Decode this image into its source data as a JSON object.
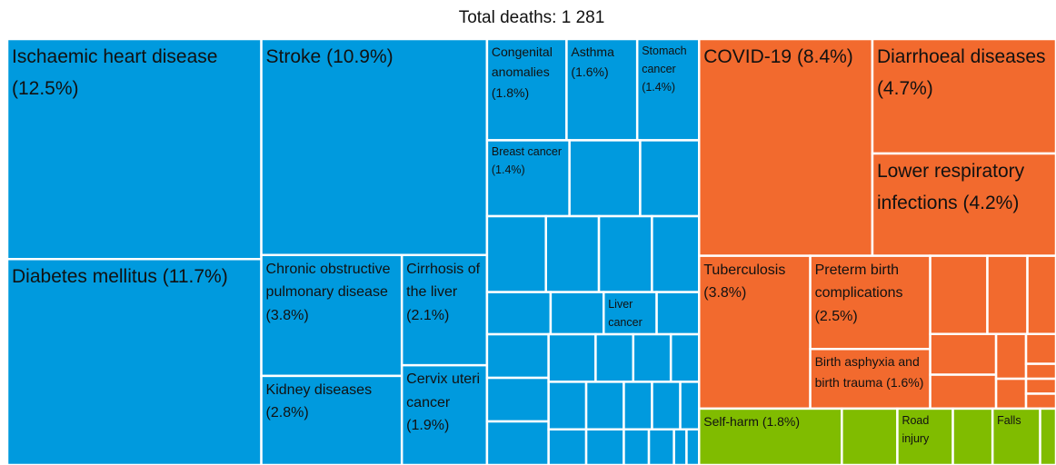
{
  "chart_data": {
    "type": "treemap",
    "title": "Total deaths: 1 281",
    "groups": [
      {
        "color": "#009ADE",
        "categories": [
          "Ischaemic heart disease",
          "Diabetes mellitus",
          "Stroke",
          "Chronic obstructive pulmonary disease",
          "Kidney diseases",
          "Cirrhosis of the liver",
          "Cervix uteri cancer",
          "Congenital anomalies",
          "Asthma",
          "Stomach cancer",
          "Breast cancer",
          "Liver cancer",
          null,
          null,
          null,
          null,
          null,
          null,
          null,
          null,
          null,
          null,
          null,
          null,
          null,
          null,
          null,
          null,
          null,
          null,
          null,
          null,
          null,
          null,
          null,
          null,
          null,
          null,
          null
        ],
        "values": [
          12.5,
          11.7,
          10.9,
          3.8,
          2.8,
          2.1,
          1.9,
          1.8,
          1.6,
          1.4,
          1.4,
          0.5,
          1.2,
          1.0,
          1.0,
          0.9,
          0.9,
          0.8,
          0.6,
          0.5,
          0.4,
          0.6,
          0.6,
          0.6,
          0.5,
          0.4,
          0.4,
          0.3,
          0.4,
          0.4,
          0.3,
          0.3,
          0.2,
          0.3,
          0.3,
          0.2,
          0.2,
          0.1,
          0.1
        ],
        "value_labels": [
          "(12.5%)",
          "(11.7%)",
          "(10.9%)",
          "(3.8%)",
          "(2.8%)",
          "(2.1%)",
          "(1.9%)",
          "(1.8%)",
          "(1.6%)",
          "(1.4%)",
          "(1.4%)",
          null,
          null,
          null,
          null,
          null,
          null,
          null,
          null,
          null,
          null,
          null,
          null,
          null,
          null,
          null,
          null,
          null,
          null,
          null,
          null,
          null,
          null,
          null,
          null,
          null,
          null,
          null,
          null
        ]
      },
      {
        "color": "#F26A2E",
        "categories": [
          "COVID-19",
          "Diarrhoeal diseases",
          "Lower respiratory infections",
          "Tuberculosis",
          "Preterm birth complications",
          "Birth asphyxia and birth trauma",
          null,
          null,
          null,
          null,
          null,
          null,
          null,
          null,
          null,
          null,
          null
        ],
        "values": [
          8.4,
          4.7,
          4.2,
          3.8,
          2.5,
          1.6,
          1.0,
          0.7,
          0.5,
          0.6,
          0.5,
          0.3,
          0.2,
          0.2,
          0.1,
          0.1,
          0.1
        ],
        "value_labels": [
          "(8.4%)",
          "(4.7%)",
          "(4.2%)",
          "(3.8%)",
          "(2.5%)",
          "(1.6%)",
          null,
          null,
          null,
          null,
          null,
          null,
          null,
          null,
          null,
          null,
          null
        ]
      },
      {
        "color": "#80BC00",
        "categories": [
          "Self-harm",
          null,
          "Road injury",
          null,
          "Falls",
          null
        ],
        "values": [
          1.8,
          0.7,
          0.7,
          0.5,
          0.6,
          0.2
        ],
        "value_labels": [
          "(1.8%)",
          null,
          null,
          null,
          null,
          null
        ]
      }
    ]
  }
}
